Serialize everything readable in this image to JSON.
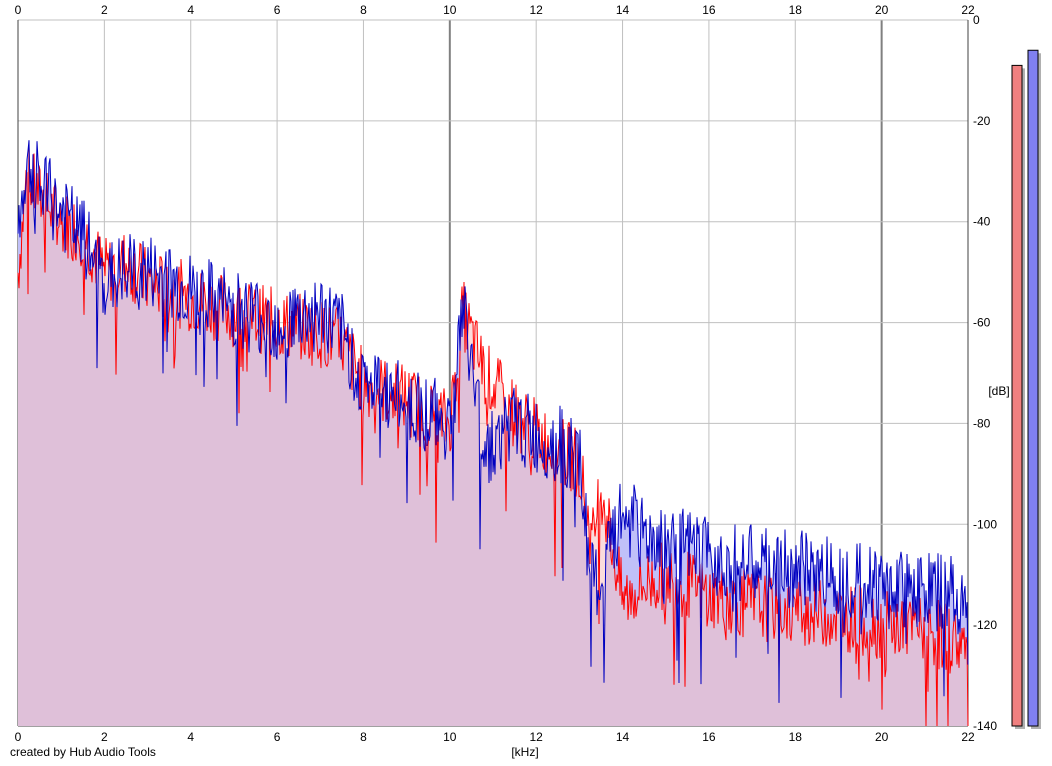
{
  "credit": "created by Hub Audio Tools",
  "colors": {
    "background": "#ffffff",
    "grid": "#c0c0c0",
    "grid_major": "#808080",
    "fill_blue": "#c0c0f8",
    "fill_red": "#f8c0c0",
    "line_red": "#ff0000",
    "line_blue": "#0000c0",
    "meter_red": "#f08080",
    "meter_blue": "#8080f0"
  },
  "chart_data": {
    "type": "area",
    "title": "",
    "xlabel": "[kHz]",
    "ylabel": "[dB]",
    "xlim": [
      0,
      22
    ],
    "ylim": [
      -140,
      0
    ],
    "x_ticks": [
      "0",
      "2",
      "4",
      "6",
      "8",
      "10",
      "12",
      "14",
      "16",
      "18",
      "20",
      "22"
    ],
    "y_ticks": [
      "0",
      "-20",
      "-40",
      "-60",
      "-80",
      "-100",
      "-120",
      "-140"
    ],
    "grid": true,
    "legend": "none",
    "series": [
      {
        "color": "#ff0000",
        "x": [
          0,
          0.2,
          0.5,
          1,
          1.5,
          2,
          2.5,
          3,
          4,
          5,
          6,
          7,
          7.5,
          8,
          9,
          9.5,
          10,
          10.3,
          10.8,
          11.5,
          12,
          12.5,
          13,
          13.3,
          13.5,
          14,
          14.5,
          15,
          16,
          17,
          18,
          19,
          20,
          21,
          22
        ],
        "y": [
          -50,
          -31,
          -35,
          -40,
          -42,
          -50,
          -48,
          -52,
          -55,
          -58,
          -60,
          -62,
          -64,
          -72,
          -75,
          -78,
          -80,
          -58,
          -70,
          -78,
          -82,
          -85,
          -88,
          -104,
          -92,
          -115,
          -112,
          -110,
          -114,
          -116,
          -117,
          -118,
          -120,
          -121,
          -124
        ]
      },
      {
        "color": "#0000c0",
        "x": [
          0,
          0.2,
          0.5,
          1,
          1.5,
          2,
          2.5,
          3,
          4,
          5,
          6,
          7,
          7.5,
          8,
          9,
          9.5,
          10,
          10.3,
          10.8,
          11.5,
          12,
          12.5,
          13,
          13.3,
          13.5,
          14,
          14.5,
          15,
          16,
          17,
          18,
          19,
          20,
          21,
          22
        ],
        "y": [
          -42,
          -28,
          -33,
          -38,
          -43,
          -52,
          -50,
          -50,
          -54,
          -57,
          -60,
          -58,
          -62,
          -72,
          -76,
          -78,
          -80,
          -57,
          -85,
          -80,
          -83,
          -84,
          -88,
          -112,
          -112,
          -98,
          -102,
          -104,
          -106,
          -108,
          -109,
          -110,
          -112,
          -113,
          -115
        ]
      }
    ],
    "level_meters": [
      {
        "color": "#f08080",
        "value_db": -9
      },
      {
        "color": "#8080f0",
        "value_db": -6
      }
    ]
  }
}
